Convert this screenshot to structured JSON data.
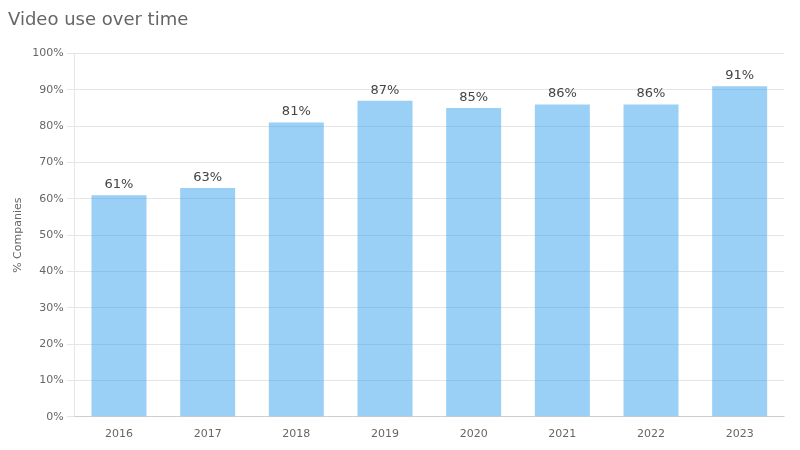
{
  "chart_data": {
    "type": "bar",
    "title": "Video use over time",
    "categories": [
      "2016",
      "2017",
      "2018",
      "2019",
      "2020",
      "2021",
      "2022",
      "2023"
    ],
    "values": [
      61,
      63,
      81,
      87,
      85,
      86,
      86,
      91
    ],
    "value_labels": [
      "61%",
      "63%",
      "81%",
      "87%",
      "85%",
      "86%",
      "86%",
      "91%"
    ],
    "data_labels": true,
    "ylabel": "% Companies",
    "ylim": [
      0,
      100
    ],
    "yticks": [
      {
        "value": 0,
        "label": "0%"
      },
      {
        "value": 10,
        "label": "10%"
      },
      {
        "value": 20,
        "label": "20%"
      },
      {
        "value": 30,
        "label": "30%"
      },
      {
        "value": 40,
        "label": "40%"
      },
      {
        "value": 50,
        "label": "50%"
      },
      {
        "value": 60,
        "label": "60%"
      },
      {
        "value": 70,
        "label": "70%"
      },
      {
        "value": 80,
        "label": "80%"
      },
      {
        "value": 90,
        "label": "90%"
      },
      {
        "value": 100,
        "label": "100%"
      }
    ],
    "grid": true
  }
}
